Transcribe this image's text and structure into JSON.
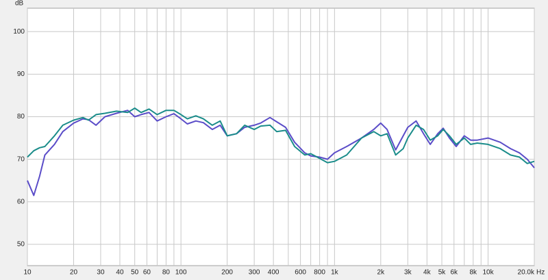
{
  "chart_data": {
    "type": "line",
    "y_label": "dB",
    "x_label": "Hz",
    "xscale": "log",
    "grid": true,
    "xlim": [
      10,
      20000
    ],
    "ylim": [
      45,
      105.5
    ],
    "xticks": [
      10,
      20,
      30,
      40,
      50,
      60,
      80,
      100,
      200,
      300,
      400,
      600,
      800,
      {
        "value": 1000,
        "label": "1k"
      },
      {
        "value": 2000,
        "label": "2k"
      },
      {
        "value": 3000,
        "label": "3k"
      },
      {
        "value": 4000,
        "label": "4k"
      },
      {
        "value": 5000,
        "label": "5k"
      },
      {
        "value": 6000,
        "label": "6k"
      },
      {
        "value": 8000,
        "label": "8k"
      },
      {
        "value": 10000,
        "label": "10k"
      },
      {
        "value": 20000,
        "label": "20.0k"
      }
    ],
    "xminor": [
      70,
      90,
      500,
      700,
      900,
      7000,
      9000
    ],
    "yticks": [
      50,
      60,
      70,
      80,
      90,
      100
    ],
    "x": [
      10,
      11,
      12,
      13,
      15,
      17,
      20,
      23,
      25,
      28,
      32,
      38,
      45,
      50,
      55,
      62,
      70,
      80,
      90,
      100,
      110,
      125,
      140,
      160,
      180,
      200,
      230,
      260,
      300,
      330,
      380,
      420,
      480,
      550,
      640,
      700,
      800,
      900,
      1000,
      1200,
      1500,
      1800,
      2000,
      2200,
      2500,
      2800,
      3000,
      3400,
      3800,
      4200,
      4700,
      5100,
      5600,
      6200,
      7000,
      7700,
      8500,
      10000,
      12000,
      14000,
      16000,
      18000,
      20000
    ],
    "series": [
      {
        "color": "#5a4cc8",
        "values": [
          65,
          61.5,
          66,
          71,
          73.5,
          76.5,
          78.5,
          79.5,
          79.3,
          78,
          80,
          80.8,
          81.5,
          80,
          80.5,
          81,
          79,
          80,
          80.7,
          79.5,
          78.3,
          79,
          78.6,
          77,
          78,
          75.5,
          76,
          77.5,
          78,
          78.5,
          79.8,
          78.8,
          77.5,
          74,
          71.5,
          70.8,
          70.5,
          70,
          71.5,
          73,
          75,
          77,
          78.5,
          77,
          72.2,
          75.5,
          77.5,
          79,
          76,
          73.5,
          76,
          77.3,
          75,
          73,
          75.5,
          74.5,
          74.5,
          75,
          74,
          72.5,
          71.5,
          70,
          68
        ]
      },
      {
        "color": "#1a8c8a",
        "values": [
          70.5,
          72,
          72.7,
          73,
          75.5,
          78,
          79.2,
          79.8,
          79.2,
          80.5,
          80.8,
          81.3,
          81,
          82,
          81,
          81.8,
          80.5,
          81.5,
          81.5,
          80.5,
          79.5,
          80.2,
          79.5,
          78,
          79,
          75.5,
          76,
          78,
          77,
          77.8,
          78,
          76.5,
          76.8,
          73,
          71,
          71.3,
          70.2,
          69.2,
          69.5,
          71,
          75,
          76.5,
          75.5,
          76,
          71,
          72.5,
          75,
          78,
          77,
          74.5,
          75.5,
          77,
          75.5,
          73.5,
          75,
          73.5,
          73.8,
          73.5,
          72.5,
          71,
          70.5,
          69,
          69.5
        ]
      }
    ]
  }
}
